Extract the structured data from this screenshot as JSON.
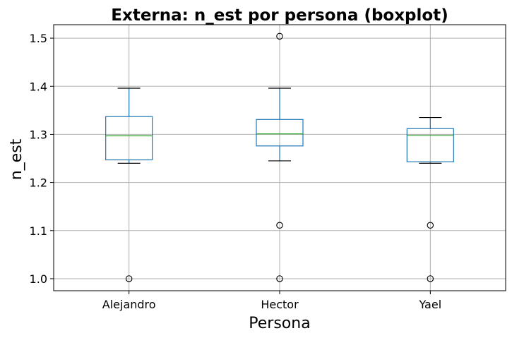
{
  "chart_data": {
    "type": "boxplot",
    "title": "Externa: n_est por persona (boxplot)",
    "xlabel": "Persona",
    "ylabel": "n_est",
    "categories": [
      "Alejandro",
      "Hector",
      "Yael"
    ],
    "ylim": [
      0.975,
      1.528
    ],
    "yticks": [
      1.0,
      1.1,
      1.2,
      1.3,
      1.4,
      1.5
    ],
    "ytick_labels": [
      "1.0",
      "1.1",
      "1.2",
      "1.3",
      "1.4",
      "1.5"
    ],
    "grid": true,
    "boxes": [
      {
        "category": "Alejandro",
        "whisker_low": 1.24,
        "q1": 1.247,
        "median": 1.297,
        "q3": 1.337,
        "whisker_high": 1.396,
        "outliers": [
          1.0
        ]
      },
      {
        "category": "Hector",
        "whisker_low": 1.245,
        "q1": 1.276,
        "median": 1.301,
        "q3": 1.331,
        "whisker_high": 1.396,
        "outliers": [
          1.504,
          1.111,
          1.0
        ]
      },
      {
        "category": "Yael",
        "whisker_low": 1.24,
        "q1": 1.243,
        "median": 1.298,
        "q3": 1.312,
        "whisker_high": 1.335,
        "outliers": [
          1.111,
          1.0
        ]
      }
    ],
    "colors": {
      "box": "#1f77b4",
      "median": "#2ca02c",
      "whisker_cap": "#000000",
      "grid": "#b0b0b0",
      "outlier_edge": "#000000"
    }
  }
}
